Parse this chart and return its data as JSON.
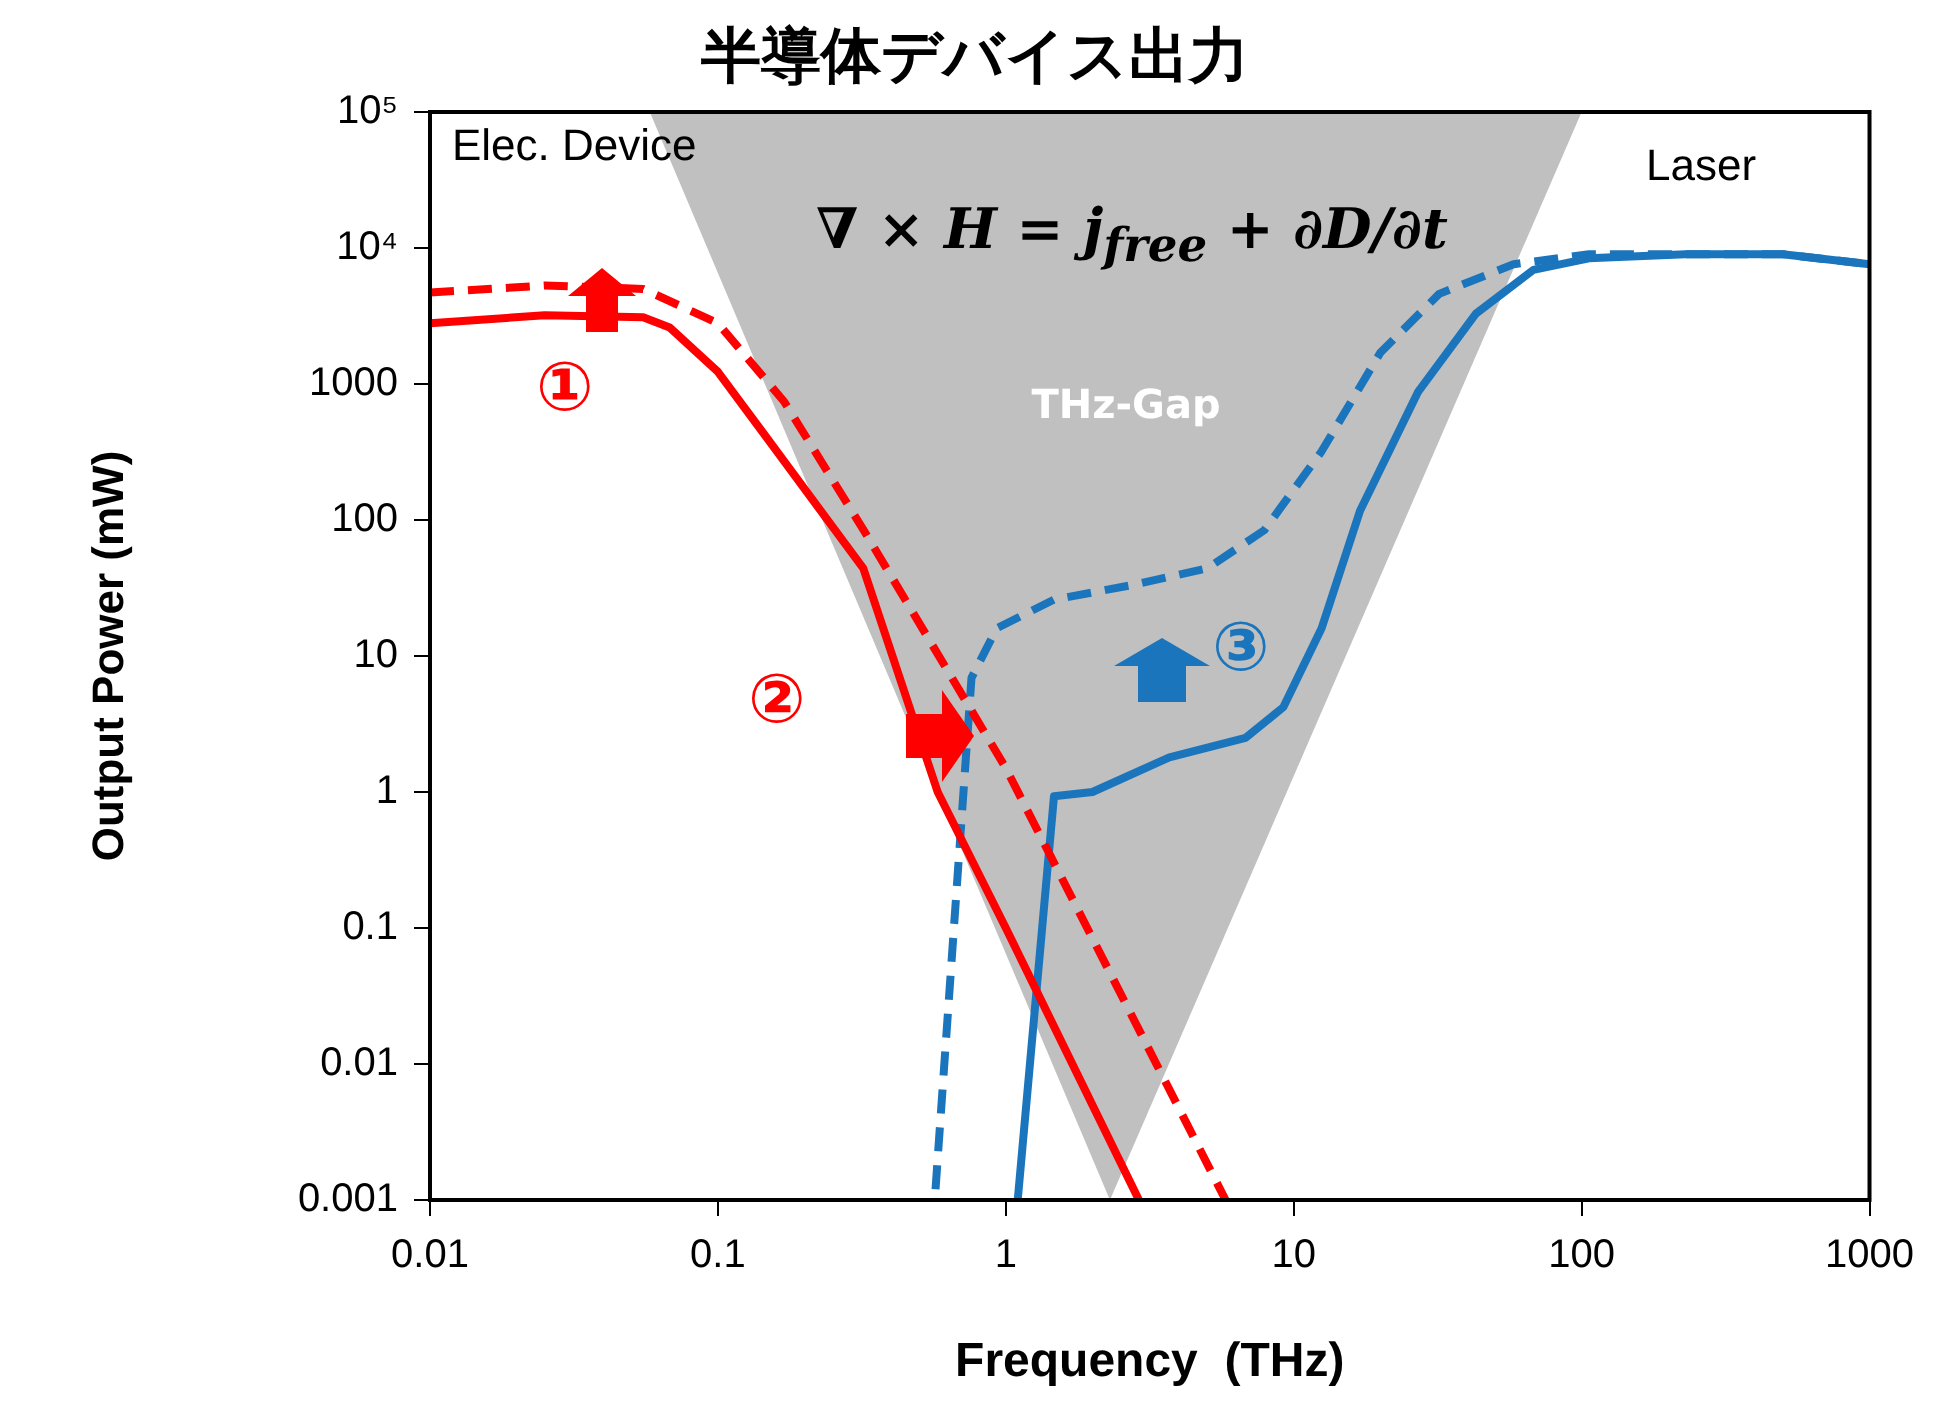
{
  "chart_data": {
    "type": "line",
    "title": "半導体デバイス出力",
    "xlabel": "Frequency  (THz)",
    "ylabel": "Output Power (mW)",
    "log": "xy",
    "grid": false,
    "marker": "none",
    "xlim": [
      0.01,
      1000
    ],
    "ylim": [
      0.001,
      100000
    ],
    "xticks": [
      0.01,
      0.1,
      1,
      10,
      100,
      1000
    ],
    "yticks": [
      0.001,
      0.01,
      0.1,
      1,
      10,
      100,
      1000,
      {
        "value": 10000,
        "label": "10⁴"
      },
      {
        "value": 100000,
        "label": "10⁵"
      }
    ],
    "series": [
      {
        "type": "area",
        "color": "#c0c0c0",
        "x": [
          0.058,
          2.3,
          100
        ],
        "values": [
          100000,
          0.001,
          100000
        ]
      },
      {
        "color": "#ff0000",
        "line_style": "solid",
        "x": [
          0.01,
          0.025,
          0.055,
          0.068,
          0.1,
          0.17,
          0.32,
          0.58,
          1,
          2.9
        ],
        "values": [
          2800,
          3200,
          3100,
          2600,
          1230,
          270,
          44,
          1,
          0.1,
          0.001
        ]
      },
      {
        "color": "#ff0000",
        "line_style": "dashed",
        "x": [
          0.01,
          0.025,
          0.055,
          0.1,
          0.17,
          0.32,
          1,
          5.8
        ],
        "values": [
          4700,
          5300,
          5000,
          2800,
          740,
          85,
          1.5,
          0.001
        ]
      },
      {
        "color": "#1b75bc",
        "line_style": "solid",
        "x": [
          1.1,
          1.47,
          2,
          3.7,
          6.8,
          9.2,
          12.5,
          17,
          27,
          43,
          68,
          106,
          230,
          500,
          1000
        ],
        "values": [
          0.001,
          0.93,
          1,
          1.8,
          2.5,
          4.2,
          16,
          117,
          870,
          3300,
          6900,
          8400,
          9000,
          9000,
          7600
        ]
      },
      {
        "color": "#1b75bc",
        "line_style": "dashed",
        "x": [
          0.57,
          0.76,
          0.93,
          1.47,
          2.7,
          5,
          7.9,
          12.5,
          20,
          32,
          58,
          106,
          230,
          500,
          1000
        ],
        "values": [
          0.0012,
          6.9,
          16,
          26,
          33,
          44,
          84,
          320,
          1700,
          4600,
          7600,
          9000,
          9000,
          9000,
          7600
        ]
      }
    ],
    "annotations": [
      "Elec. Device",
      "Laser",
      "∇ × H = j$_{free}$ + ∂D/∂t",
      "THz-Gap",
      "①",
      "②",
      "③"
    ]
  }
}
